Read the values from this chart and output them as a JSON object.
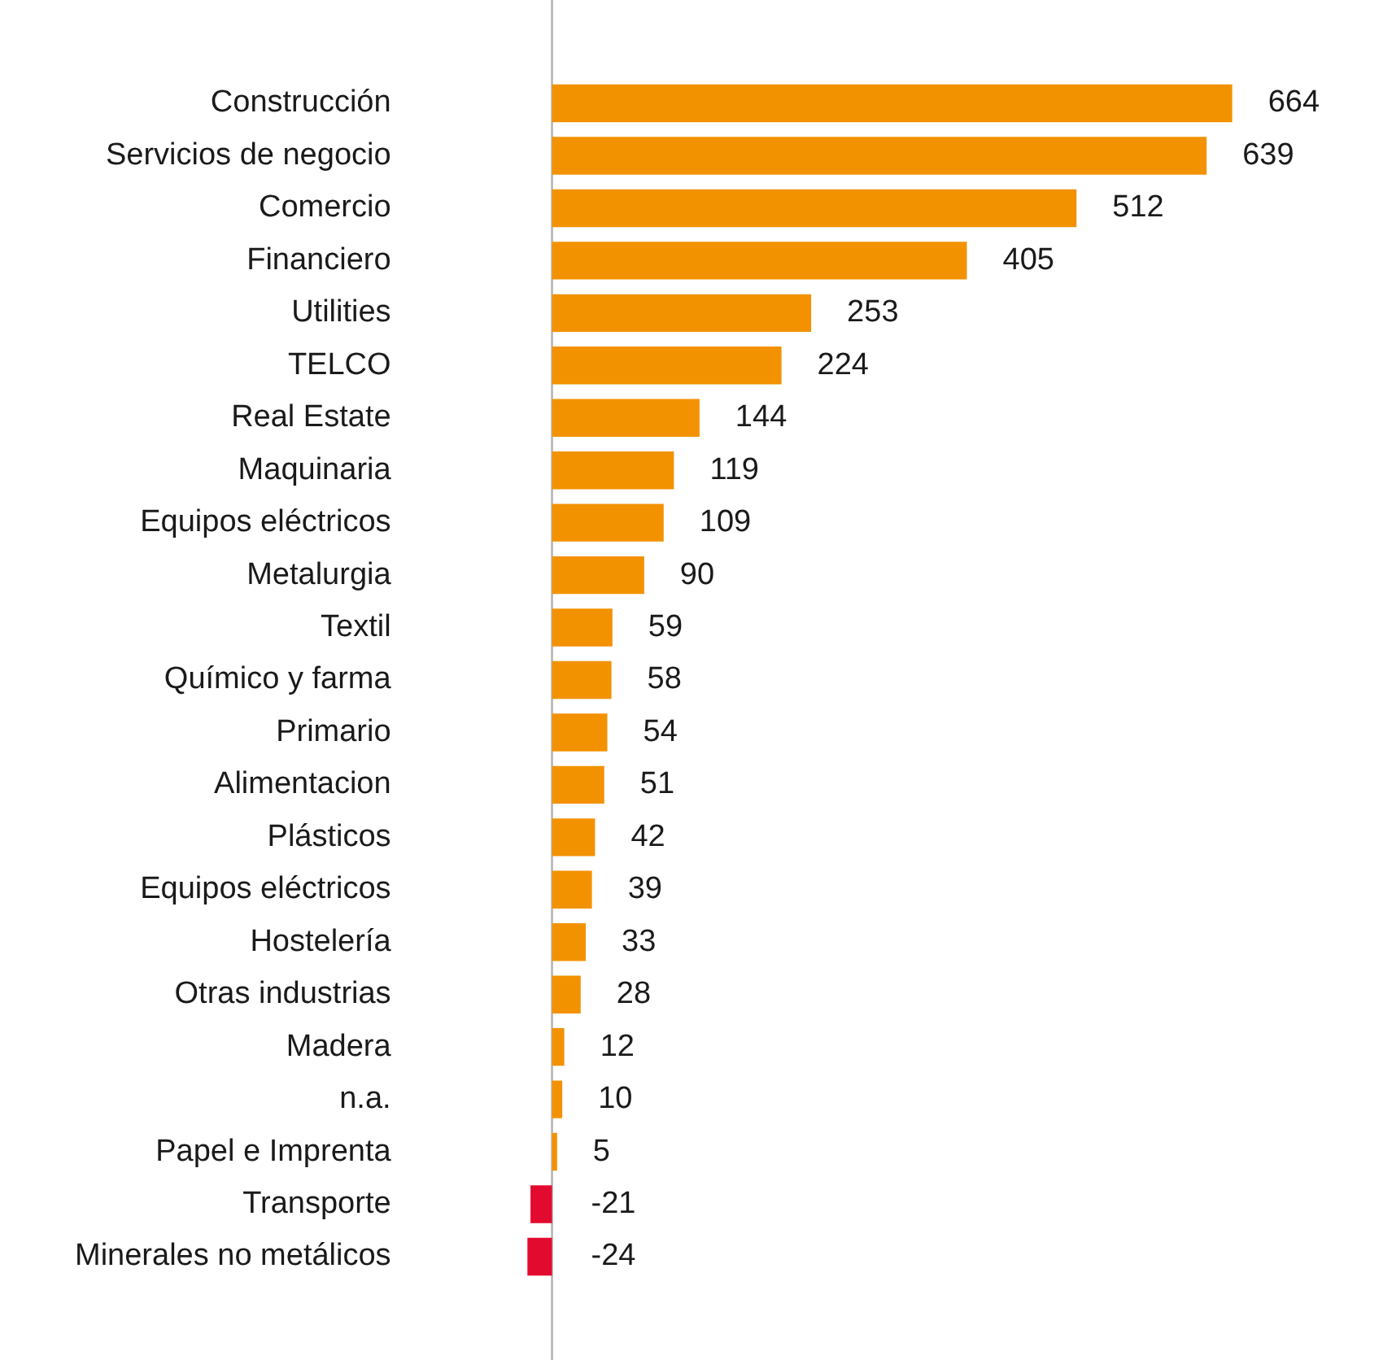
{
  "chart_data": {
    "type": "bar",
    "orientation": "horizontal",
    "categories": [
      "Construcción",
      "Servicios de negocio",
      "Comercio",
      "Financiero",
      "Utilities",
      "TELCO",
      "Real Estate",
      "Maquinaria",
      "Equipos eléctricos",
      "Metalurgia",
      "Textil",
      "Químico y farma",
      "Primario",
      "Alimentacion",
      "Plásticos",
      "Equipos eléctricos",
      "Hostelería",
      "Otras industrias",
      "Madera",
      "n.a.",
      "Papel e Imprenta",
      "Transporte",
      "Minerales no metálicos"
    ],
    "values": [
      664,
      639,
      512,
      405,
      253,
      224,
      144,
      119,
      109,
      90,
      59,
      58,
      54,
      51,
      42,
      39,
      33,
      28,
      12,
      10,
      5,
      -21,
      -24
    ],
    "colors": [
      "#f39200",
      "#f39200",
      "#f39200",
      "#f39200",
      "#f39200",
      "#f39200",
      "#f39200",
      "#f39200",
      "#f39200",
      "#f39200",
      "#f39200",
      "#f39200",
      "#f39200",
      "#f39200",
      "#f39200",
      "#f39200",
      "#f39200",
      "#f39200",
      "#f39200",
      "#f39200",
      "#f39200",
      "#e30a2f",
      "#e30a2f"
    ],
    "data_labels": true,
    "tick_labels": "y",
    "grid": false,
    "legend": false
  }
}
